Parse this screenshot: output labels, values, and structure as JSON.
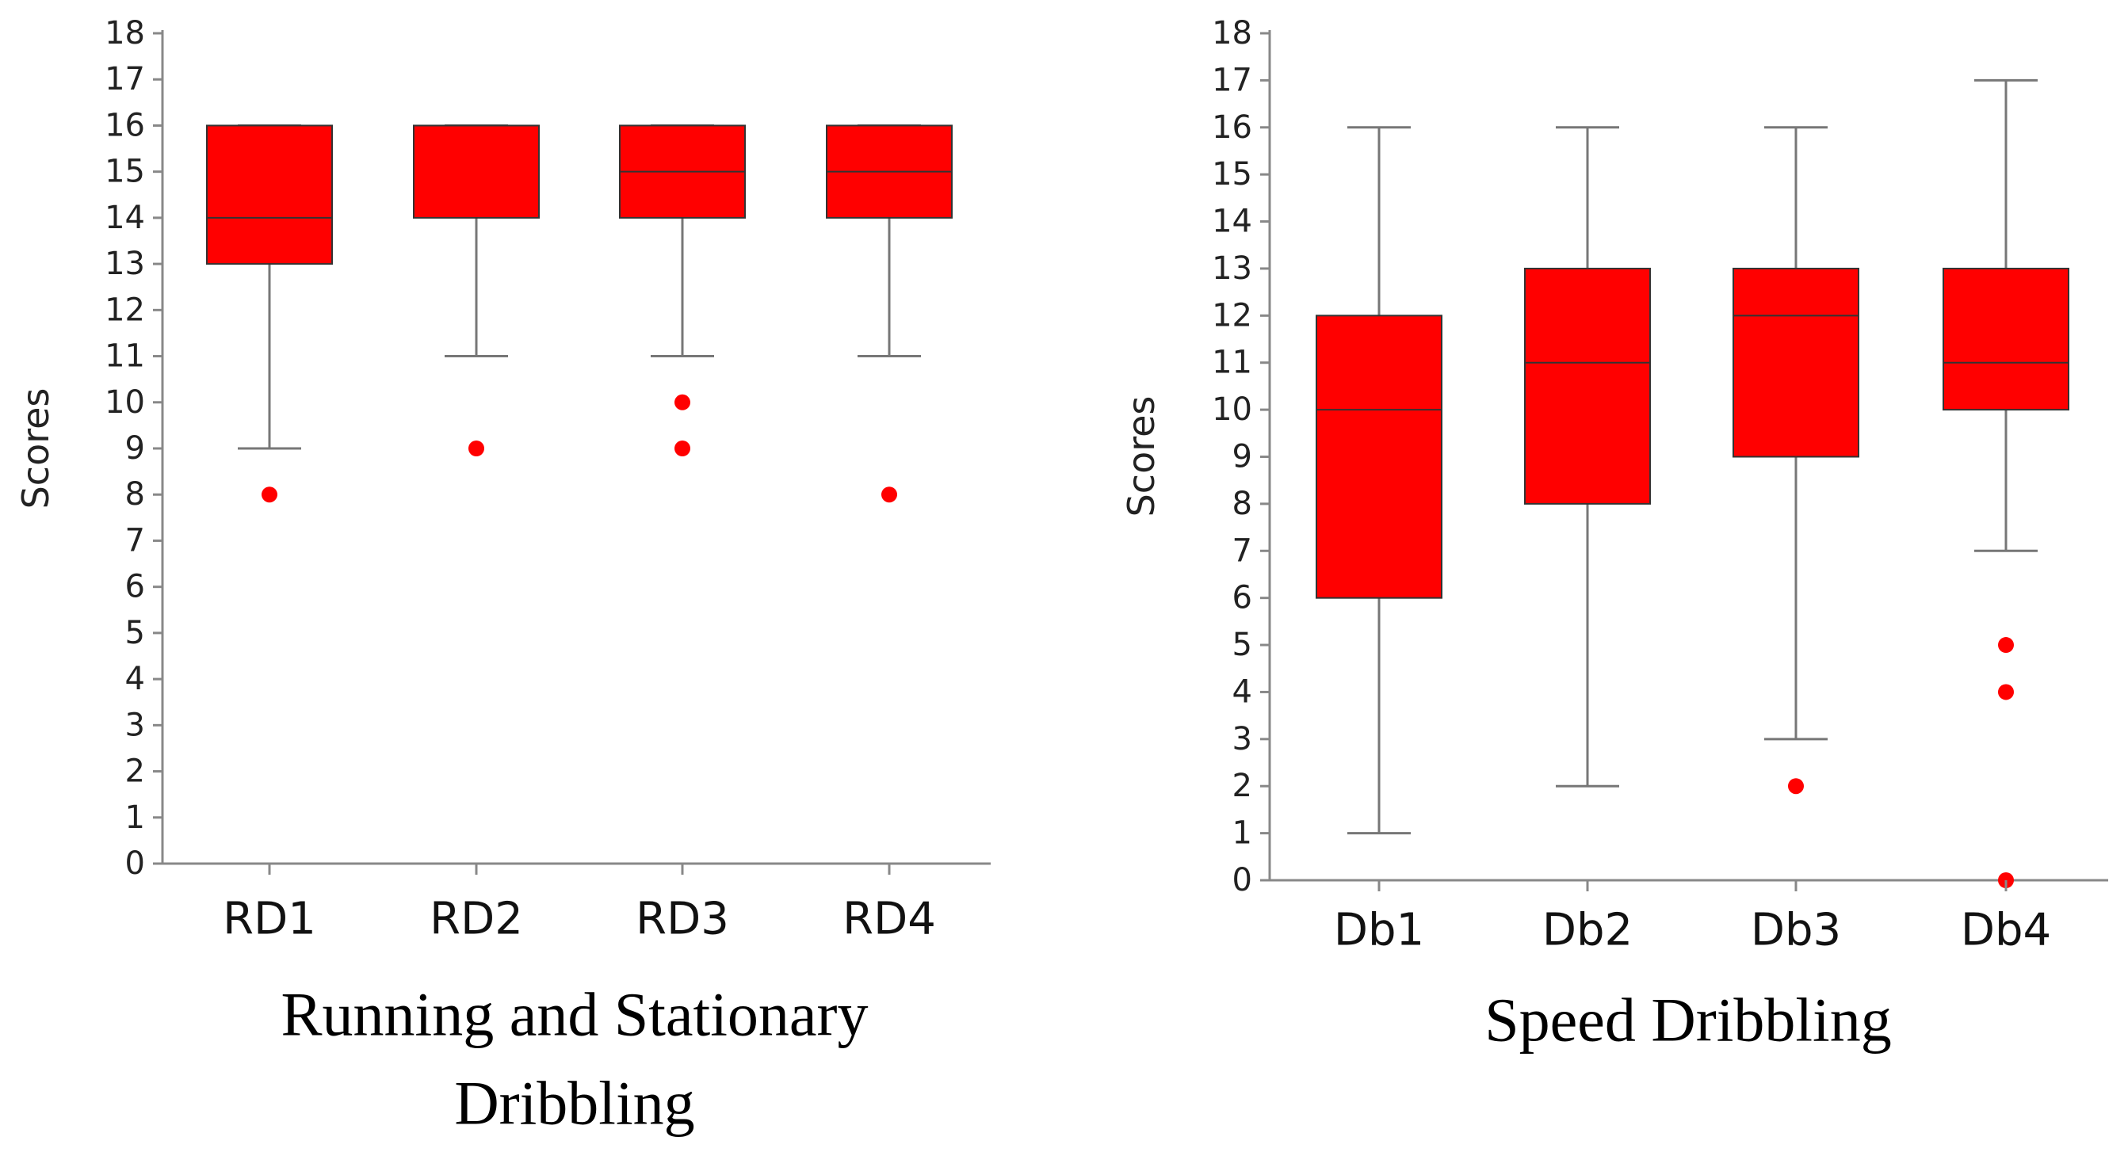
{
  "chart_data": [
    {
      "type": "boxplot",
      "title": "Running and Stationary Dribbling",
      "title_lines": [
        "Running and Stationary",
        "Dribbling"
      ],
      "ylabel": "Scores",
      "xlabel": "",
      "ylim": [
        0,
        18
      ],
      "yticks": [
        0,
        1,
        2,
        3,
        4,
        5,
        6,
        7,
        8,
        9,
        10,
        11,
        12,
        13,
        14,
        15,
        16,
        17,
        18
      ],
      "box_color": "#ff0000",
      "outlier_color": "#ff0000",
      "categories": [
        "RD1",
        "RD2",
        "RD3",
        "RD4"
      ],
      "boxes": [
        {
          "name": "RD1",
          "min": 9,
          "q1": 13,
          "median": 14,
          "q3": 16,
          "max": 16,
          "outliers": [
            8
          ]
        },
        {
          "name": "RD2",
          "min": 11,
          "q1": 14,
          "median": 16,
          "q3": 16,
          "max": 16,
          "outliers": [
            9
          ]
        },
        {
          "name": "RD3",
          "min": 11,
          "q1": 14,
          "median": 15,
          "q3": 16,
          "max": 16,
          "outliers": [
            10,
            9
          ]
        },
        {
          "name": "RD4",
          "min": 11,
          "q1": 14,
          "median": 15,
          "q3": 16,
          "max": 16,
          "outliers": [
            8
          ]
        }
      ]
    },
    {
      "type": "boxplot",
      "title": "Speed Dribbling",
      "title_lines": [
        "Speed Dribbling"
      ],
      "ylabel": "Scores",
      "xlabel": "",
      "ylim": [
        0,
        18
      ],
      "yticks": [
        0,
        1,
        2,
        3,
        4,
        5,
        6,
        7,
        8,
        9,
        10,
        11,
        12,
        13,
        14,
        15,
        16,
        17,
        18
      ],
      "box_color": "#ff0000",
      "outlier_color": "#ff0000",
      "categories": [
        "Db1",
        "Db2",
        "Db3",
        "Db4"
      ],
      "boxes": [
        {
          "name": "Db1",
          "min": 1,
          "q1": 6,
          "median": 10,
          "q3": 12,
          "max": 16,
          "outliers": []
        },
        {
          "name": "Db2",
          "min": 2,
          "q1": 8,
          "median": 11,
          "q3": 13,
          "max": 16,
          "outliers": []
        },
        {
          "name": "Db3",
          "min": 3,
          "q1": 9,
          "median": 12,
          "q3": 13,
          "max": 16,
          "outliers": [
            2
          ]
        },
        {
          "name": "Db4",
          "min": 7,
          "q1": 10,
          "median": 11,
          "q3": 13,
          "max": 17,
          "outliers": [
            5,
            4,
            0
          ]
        }
      ]
    }
  ]
}
